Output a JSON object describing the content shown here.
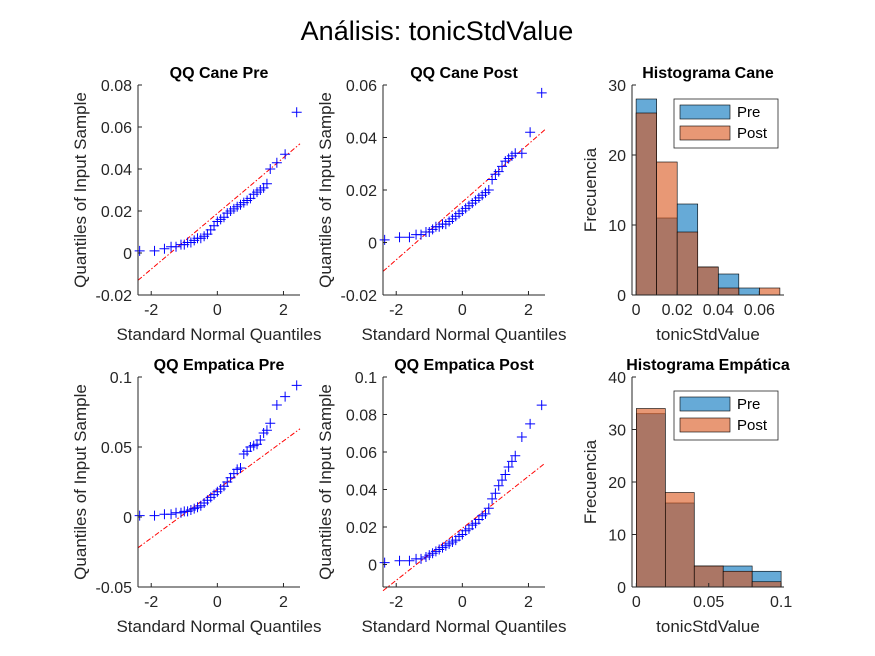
{
  "figure": {
    "title": "Análisis: tonicStdValue"
  },
  "colors": {
    "pre": "#0072BD",
    "post": "#D95319",
    "marker": "#0000FF",
    "refline": "#FF0000",
    "axis": "#262626"
  },
  "chart_data": [
    {
      "id": "qq_cane_pre",
      "type": "scatter",
      "subtype": "qq",
      "title": "QQ Cane Pre",
      "xlabel": "Standard Normal Quantiles",
      "ylabel": "Quantiles of Input Sample",
      "xlim": [
        -2.4,
        2.5
      ],
      "ylim": [
        -0.02,
        0.08
      ],
      "xticks": [
        -2,
        0,
        2
      ],
      "xticklabels": [
        "-2",
        "0",
        "2"
      ],
      "yticks": [
        -0.02,
        0,
        0.02,
        0.04,
        0.06,
        0.08
      ],
      "yticklabels": [
        "-0.02",
        "0",
        "0.02",
        "0.04",
        "0.06",
        "0.08"
      ],
      "ref_line": {
        "x": [
          -2.4,
          2.5
        ],
        "y": [
          -0.013,
          0.052
        ]
      },
      "series": [
        {
          "x": [
            -2.35,
            -1.9,
            -1.6,
            -1.4,
            -1.25,
            -1.1,
            -1.0,
            -0.9,
            -0.8,
            -0.7,
            -0.6,
            -0.5,
            -0.4,
            -0.3,
            -0.2,
            -0.1,
            0.0,
            0.1,
            0.2,
            0.3,
            0.4,
            0.5,
            0.6,
            0.7,
            0.8,
            0.9,
            1.0,
            1.1,
            1.2,
            1.3,
            1.4,
            1.5,
            1.6,
            1.8,
            2.05,
            2.4
          ],
          "y": [
            0.001,
            0.001,
            0.002,
            0.003,
            0.003,
            0.004,
            0.004,
            0.005,
            0.005,
            0.006,
            0.007,
            0.007,
            0.008,
            0.009,
            0.011,
            0.013,
            0.015,
            0.016,
            0.017,
            0.019,
            0.02,
            0.021,
            0.022,
            0.023,
            0.024,
            0.025,
            0.026,
            0.028,
            0.029,
            0.03,
            0.031,
            0.033,
            0.04,
            0.043,
            0.047,
            0.067
          ]
        }
      ]
    },
    {
      "id": "qq_cane_post",
      "type": "scatter",
      "subtype": "qq",
      "title": "QQ Cane Post",
      "xlabel": "Standard Normal Quantiles",
      "ylabel": "Quantiles of Input Sample",
      "xlim": [
        -2.4,
        2.5
      ],
      "ylim": [
        -0.02,
        0.06
      ],
      "xticks": [
        -2,
        0,
        2
      ],
      "xticklabels": [
        "-2",
        "0",
        "2"
      ],
      "yticks": [
        -0.02,
        0,
        0.02,
        0.04,
        0.06
      ],
      "yticklabels": [
        "-0.02",
        "0",
        "0.02",
        "0.04",
        "0.06"
      ],
      "ref_line": {
        "x": [
          -2.4,
          2.5
        ],
        "y": [
          -0.011,
          0.043
        ]
      },
      "series": [
        {
          "x": [
            -2.35,
            -1.9,
            -1.6,
            -1.4,
            -1.25,
            -1.1,
            -1.0,
            -0.9,
            -0.8,
            -0.7,
            -0.6,
            -0.5,
            -0.4,
            -0.3,
            -0.2,
            -0.1,
            0.0,
            0.1,
            0.2,
            0.3,
            0.4,
            0.5,
            0.6,
            0.7,
            0.8,
            0.9,
            1.0,
            1.1,
            1.2,
            1.3,
            1.4,
            1.5,
            1.6,
            1.8,
            2.05,
            2.4
          ],
          "y": [
            0.001,
            0.002,
            0.002,
            0.003,
            0.003,
            0.004,
            0.004,
            0.005,
            0.006,
            0.006,
            0.007,
            0.007,
            0.008,
            0.009,
            0.01,
            0.011,
            0.012,
            0.013,
            0.014,
            0.015,
            0.016,
            0.017,
            0.018,
            0.019,
            0.02,
            0.024,
            0.026,
            0.027,
            0.029,
            0.031,
            0.032,
            0.033,
            0.034,
            0.034,
            0.042,
            0.057
          ]
        }
      ]
    },
    {
      "id": "hist_cane",
      "type": "bar",
      "subtype": "histogram",
      "title": "Histograma Cane",
      "xlabel": "tonicStdValue",
      "ylabel": "Frecuencia",
      "xlim": [
        -0.002,
        0.072
      ],
      "ylim": [
        0,
        30
      ],
      "xticks": [
        0,
        0.02,
        0.04,
        0.06
      ],
      "xticklabels": [
        "0",
        "0.02",
        "0.04",
        "0.06"
      ],
      "yticks": [
        0,
        10,
        20,
        30
      ],
      "yticklabels": [
        "0",
        "10",
        "20",
        "30"
      ],
      "bin_edges": [
        0,
        0.01,
        0.02,
        0.03,
        0.04,
        0.05,
        0.06,
        0.07
      ],
      "series": [
        {
          "name": "Pre",
          "values": [
            28,
            11,
            13,
            4,
            3,
            1,
            0
          ]
        },
        {
          "name": "Post",
          "values": [
            26,
            19,
            9,
            4,
            1,
            0,
            1
          ]
        }
      ],
      "legend": "top-right"
    },
    {
      "id": "qq_empatica_pre",
      "type": "scatter",
      "subtype": "qq",
      "title": "QQ Empatica Pre",
      "xlabel": "Standard Normal Quantiles",
      "ylabel": "Quantiles of Input Sample",
      "xlim": [
        -2.4,
        2.5
      ],
      "ylim": [
        -0.05,
        0.1
      ],
      "xticks": [
        -2,
        0,
        2
      ],
      "xticklabels": [
        "-2",
        "0",
        "2"
      ],
      "yticks": [
        -0.05,
        0,
        0.05,
        0.1
      ],
      "yticklabels": [
        "-0.05",
        "0",
        "0.05",
        "0.1"
      ],
      "ref_line": {
        "x": [
          -2.4,
          2.5
        ],
        "y": [
          -0.022,
          0.063
        ]
      },
      "series": [
        {
          "x": [
            -2.35,
            -1.9,
            -1.6,
            -1.4,
            -1.25,
            -1.1,
            -1.0,
            -0.9,
            -0.8,
            -0.7,
            -0.6,
            -0.5,
            -0.4,
            -0.3,
            -0.2,
            -0.1,
            0.0,
            0.1,
            0.2,
            0.3,
            0.4,
            0.5,
            0.6,
            0.7,
            0.8,
            0.9,
            1.0,
            1.1,
            1.2,
            1.3,
            1.4,
            1.5,
            1.6,
            1.8,
            2.05,
            2.4
          ],
          "y": [
            0.001,
            0.001,
            0.002,
            0.002,
            0.003,
            0.003,
            0.004,
            0.004,
            0.005,
            0.006,
            0.007,
            0.008,
            0.01,
            0.012,
            0.014,
            0.016,
            0.018,
            0.02,
            0.022,
            0.025,
            0.028,
            0.031,
            0.034,
            0.035,
            0.045,
            0.047,
            0.05,
            0.051,
            0.052,
            0.055,
            0.06,
            0.062,
            0.067,
            0.08,
            0.086,
            0.094
          ]
        }
      ]
    },
    {
      "id": "qq_empatica_post",
      "type": "scatter",
      "subtype": "qq",
      "title": "QQ Empatica Post",
      "xlabel": "Standard Normal Quantiles",
      "ylabel": "Quantiles of Input Sample",
      "xlim": [
        -2.4,
        2.5
      ],
      "ylim": [
        -0.012,
        0.1
      ],
      "xticks": [
        -2,
        0,
        2
      ],
      "xticklabels": [
        "-2",
        "0",
        "2"
      ],
      "yticks": [
        0,
        0.02,
        0.04,
        0.06,
        0.08,
        0.1
      ],
      "yticklabels": [
        "0",
        "0.02",
        "0.04",
        "0.06",
        "0.08",
        "0.1"
      ],
      "ref_line": {
        "x": [
          -2.4,
          2.5
        ],
        "y": [
          -0.014,
          0.054
        ]
      },
      "series": [
        {
          "x": [
            -2.35,
            -1.9,
            -1.6,
            -1.4,
            -1.25,
            -1.1,
            -1.0,
            -0.9,
            -0.8,
            -0.7,
            -0.6,
            -0.5,
            -0.4,
            -0.3,
            -0.2,
            -0.1,
            0.0,
            0.1,
            0.2,
            0.3,
            0.4,
            0.5,
            0.6,
            0.7,
            0.8,
            0.9,
            1.0,
            1.1,
            1.2,
            1.3,
            1.4,
            1.5,
            1.6,
            1.8,
            2.05,
            2.4
          ],
          "y": [
            0.001,
            0.002,
            0.002,
            0.003,
            0.003,
            0.004,
            0.005,
            0.006,
            0.007,
            0.008,
            0.009,
            0.01,
            0.011,
            0.012,
            0.013,
            0.015,
            0.016,
            0.018,
            0.019,
            0.021,
            0.022,
            0.024,
            0.026,
            0.027,
            0.03,
            0.035,
            0.038,
            0.042,
            0.045,
            0.048,
            0.052,
            0.055,
            0.058,
            0.068,
            0.075,
            0.085
          ]
        }
      ]
    },
    {
      "id": "hist_empatica",
      "type": "bar",
      "subtype": "histogram",
      "title": "Histograma Empática",
      "xlabel": "tonicStdValue",
      "ylabel": "Frecuencia",
      "xlim": [
        -0.003,
        0.102
      ],
      "ylim": [
        0,
        40
      ],
      "xticks": [
        0,
        0.05,
        0.1
      ],
      "xticklabels": [
        "0",
        "0.05",
        "0.1"
      ],
      "yticks": [
        0,
        10,
        20,
        30,
        40
      ],
      "yticklabels": [
        "0",
        "10",
        "20",
        "30",
        "40"
      ],
      "bin_edges": [
        0,
        0.02,
        0.04,
        0.06,
        0.08,
        0.1
      ],
      "series": [
        {
          "name": "Pre",
          "values": [
            33,
            16,
            4,
            4,
            3
          ]
        },
        {
          "name": "Post",
          "values": [
            34,
            18,
            4,
            3,
            1
          ]
        }
      ],
      "legend": "top-right"
    }
  ]
}
